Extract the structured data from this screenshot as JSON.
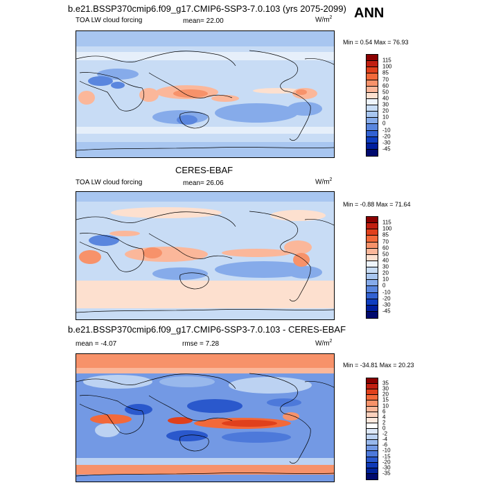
{
  "season": "ANN",
  "units": {
    "base": "W/m",
    "sup": "2"
  },
  "panels": [
    {
      "title": "b.e21.BSSP370cmip6.f09_g17.CMIP6-SSP3-7.0.103 (yrs 2075-2099)",
      "subtitle": "TOA LW cloud forcing",
      "mean_label": "mean=",
      "mean": "22.00",
      "minmax": "Min =  0.54 Max =  76.93",
      "levels": [
        "115",
        "100",
        "85",
        "70",
        "60",
        "50",
        "40",
        "30",
        "20",
        "10",
        "0",
        "-10",
        "-20",
        "-30",
        "-45"
      ],
      "colors": [
        "#8b0000",
        "#c11f11",
        "#e0401c",
        "#f2693a",
        "#f7926a",
        "#fbb79a",
        "#fde0cf",
        "#eef4fb",
        "#c8dcf5",
        "#a8c6f0",
        "#86abea",
        "#5a86de",
        "#3262d2",
        "#0f3ec0",
        "#001e9e",
        "#000a6e"
      ]
    },
    {
      "title": "CERES-EBAF",
      "subtitle": "TOA LW cloud forcing",
      "mean_label": "mean=",
      "mean": "26.06",
      "minmax": "Min =  -0.88 Max =  71.64",
      "levels": [
        "115",
        "100",
        "85",
        "70",
        "60",
        "50",
        "40",
        "30",
        "20",
        "10",
        "0",
        "-10",
        "-20",
        "-30",
        "-45"
      ],
      "colors": [
        "#8b0000",
        "#c11f11",
        "#e0401c",
        "#f2693a",
        "#f7926a",
        "#fbb79a",
        "#fde0cf",
        "#eef4fb",
        "#c8dcf5",
        "#a8c6f0",
        "#86abea",
        "#5a86de",
        "#3262d2",
        "#0f3ec0",
        "#001e9e",
        "#000a6e"
      ]
    },
    {
      "title": "b.e21.BSSP370cmip6.f09_g17.CMIP6-SSP3-7.0.103 - CERES-EBAF",
      "mean_label": "mean =",
      "mean": "-4.07",
      "rmse_label": "rmse =",
      "rmse": "7.28",
      "minmax": "Min = -34.81 Max =  20.23",
      "levels": [
        "35",
        "30",
        "20",
        "15",
        "10",
        "6",
        "4",
        "2",
        "0",
        "-2",
        "-4",
        "-6",
        "-10",
        "-15",
        "-20",
        "-30",
        "-35"
      ],
      "colors": [
        "#8b0000",
        "#c11f11",
        "#e0401c",
        "#f2693a",
        "#f7926a",
        "#fbb79a",
        "#fcd1bd",
        "#fde9de",
        "#ffffff",
        "#dde8f8",
        "#bcd2f2",
        "#98b8ec",
        "#7399e4",
        "#4d79da",
        "#2a58cc",
        "#0f3ab8",
        "#00229a",
        "#000a6e"
      ]
    }
  ]
}
